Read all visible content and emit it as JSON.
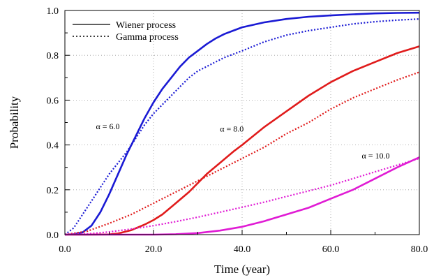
{
  "chart_data": {
    "type": "line",
    "xlabel": "Time (year)",
    "ylabel": "Probability",
    "xlim": [
      0,
      80
    ],
    "ylim": [
      0,
      1
    ],
    "x_ticks": [
      0,
      20,
      40,
      60,
      80
    ],
    "x_tick_labels": [
      "0.0",
      "20.0",
      "40.0",
      "60.0",
      "80.0"
    ],
    "y_ticks": [
      0,
      0.2,
      0.4,
      0.6,
      0.8,
      1.0
    ],
    "y_tick_labels": [
      "0.0",
      "0.2",
      "0.4",
      "0.6",
      "0.8",
      "1.0"
    ],
    "grid": true,
    "legend": {
      "placement": "top-left",
      "entries": [
        {
          "label": "Wiener process",
          "style": "solid"
        },
        {
          "label": "Gamma process",
          "style": "dotted"
        }
      ]
    },
    "annotations": [
      {
        "text": "α = 6.0",
        "x": 7.0,
        "y": 0.47
      },
      {
        "text": "α = 8.0",
        "x": 35.0,
        "y": 0.46
      },
      {
        "text": "α = 10.0",
        "x": 67.0,
        "y": 0.34
      }
    ],
    "series": [
      {
        "process": "Wiener",
        "alpha": 6.0,
        "color": "#1a1ad4",
        "style": "solid",
        "x": [
          0,
          2,
          4,
          6,
          8,
          10,
          12,
          14,
          16,
          18,
          20,
          22,
          24,
          26,
          28,
          30,
          32,
          34,
          36,
          38,
          40,
          45,
          50,
          55,
          60,
          65,
          70,
          75,
          80
        ],
        "y": [
          0,
          0.002,
          0.01,
          0.04,
          0.1,
          0.18,
          0.27,
          0.36,
          0.44,
          0.52,
          0.59,
          0.65,
          0.7,
          0.75,
          0.79,
          0.82,
          0.85,
          0.875,
          0.895,
          0.91,
          0.925,
          0.947,
          0.962,
          0.972,
          0.978,
          0.983,
          0.987,
          0.989,
          0.99
        ]
      },
      {
        "process": "Gamma",
        "alpha": 6.0,
        "color": "#1a1ad4",
        "style": "dotted",
        "x": [
          0,
          2,
          4,
          6,
          8,
          10,
          12,
          14,
          16,
          18,
          20,
          22,
          24,
          26,
          28,
          30,
          32,
          34,
          36,
          38,
          40,
          45,
          50,
          55,
          60,
          65,
          70,
          75,
          80
        ],
        "y": [
          0,
          0.03,
          0.09,
          0.15,
          0.21,
          0.27,
          0.32,
          0.37,
          0.43,
          0.49,
          0.54,
          0.58,
          0.62,
          0.66,
          0.7,
          0.73,
          0.75,
          0.77,
          0.79,
          0.805,
          0.82,
          0.86,
          0.89,
          0.91,
          0.925,
          0.94,
          0.95,
          0.957,
          0.962
        ]
      },
      {
        "process": "Wiener",
        "alpha": 8.0,
        "color": "#e01b1b",
        "style": "solid",
        "x": [
          0,
          5,
          10,
          12,
          15,
          18,
          20,
          22,
          25,
          28,
          30,
          32,
          35,
          38,
          40,
          45,
          50,
          55,
          60,
          65,
          70,
          75,
          80
        ],
        "y": [
          0,
          0.0,
          0.001,
          0.005,
          0.02,
          0.045,
          0.065,
          0.09,
          0.14,
          0.19,
          0.23,
          0.27,
          0.32,
          0.37,
          0.4,
          0.48,
          0.55,
          0.62,
          0.68,
          0.73,
          0.77,
          0.81,
          0.84
        ]
      },
      {
        "process": "Gamma",
        "alpha": 8.0,
        "color": "#e01b1b",
        "style": "dotted",
        "x": [
          0,
          5,
          10,
          15,
          20,
          25,
          30,
          35,
          40,
          45,
          50,
          55,
          60,
          65,
          70,
          75,
          80
        ],
        "y": [
          0,
          0.015,
          0.05,
          0.09,
          0.14,
          0.19,
          0.24,
          0.29,
          0.34,
          0.39,
          0.45,
          0.5,
          0.56,
          0.61,
          0.65,
          0.69,
          0.725
        ]
      },
      {
        "process": "Wiener",
        "alpha": 10.0,
        "color": "#e01bd4",
        "style": "solid",
        "x": [
          0,
          5,
          10,
          15,
          20,
          25,
          30,
          35,
          40,
          45,
          50,
          55,
          60,
          65,
          70,
          75,
          80
        ],
        "y": [
          0,
          0.0,
          0.0,
          0.0,
          0.0,
          0.002,
          0.007,
          0.018,
          0.035,
          0.06,
          0.09,
          0.12,
          0.16,
          0.2,
          0.25,
          0.3,
          0.345
        ]
      },
      {
        "process": "Gamma",
        "alpha": 10.0,
        "color": "#e01bd4",
        "style": "dotted",
        "x": [
          0,
          5,
          10,
          15,
          20,
          25,
          30,
          35,
          40,
          45,
          50,
          55,
          60,
          65,
          70,
          75,
          80
        ],
        "y": [
          0,
          0.003,
          0.012,
          0.025,
          0.04,
          0.058,
          0.078,
          0.1,
          0.122,
          0.145,
          0.17,
          0.195,
          0.22,
          0.25,
          0.28,
          0.31,
          0.34
        ]
      }
    ]
  }
}
